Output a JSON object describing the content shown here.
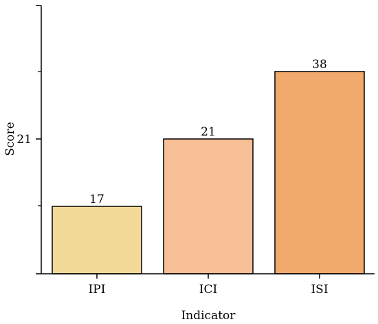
{
  "chart_data": {
    "type": "bar",
    "categories": [
      "IPI",
      "ICI",
      "ISI"
    ],
    "values": [
      17,
      21,
      38
    ],
    "data_labels": [
      "17",
      "21",
      "38"
    ],
    "colors": [
      "#f3da98",
      "#f7bf95",
      "#f2a96c"
    ],
    "xlabel": "Indicator",
    "ylabel": "Score",
    "y_tick_labels": [
      "21"
    ],
    "grid": false,
    "legend": "none"
  }
}
